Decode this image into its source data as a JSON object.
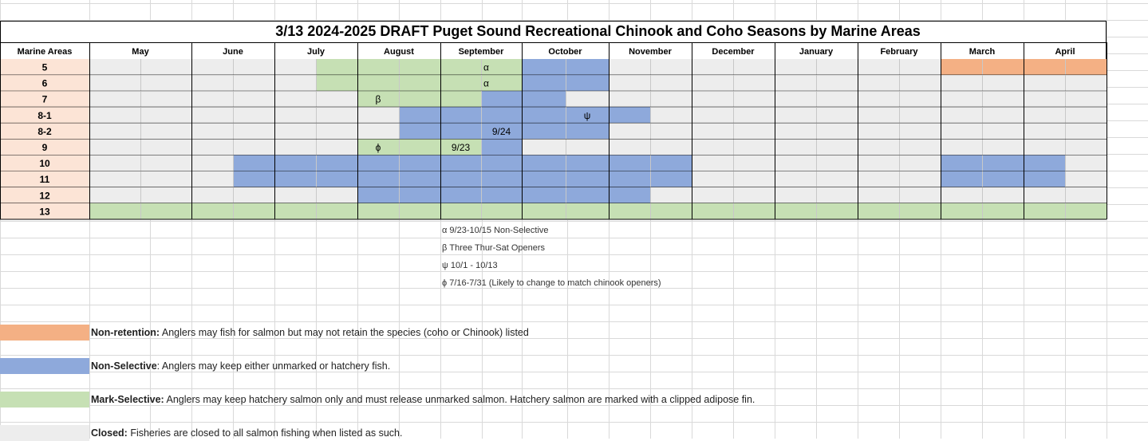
{
  "title": "3/13 2024-2025 DRAFT Puget Sound Recreational Chinook and Coho Seasons by Marine Areas",
  "header_label": "Marine Areas",
  "months": [
    "May",
    "June",
    "July",
    "August",
    "September",
    "October",
    "November",
    "December",
    "January",
    "February",
    "March",
    "April"
  ],
  "areas": [
    "5",
    "6",
    "7",
    "8-1",
    "8-2",
    "9",
    "10",
    "11",
    "12",
    "13"
  ],
  "colors": {
    "closed": "#ededed",
    "mark_selective": "#c6e0b4",
    "non_selective": "#8ea9db",
    "non_retention": "#f4b084",
    "area_label": "#fce4d6"
  },
  "schedule": [
    "CCCCCCCCCCCCCCCCCCCCCCCCCCCCCCCCCCCCCCCCCCCCCCCCCCCCCCCCCCCCCCCCCCCCCCCCCCCCRRRR",
    "",
    "",
    "",
    "",
    "",
    "",
    "",
    "",
    ""
  ],
  "rows": [
    "CCCCCMMMMMNNCCCCCCCCRRRR",
    "CCCCCMMMMMNNCCCCCCCCCCCC",
    "CCCCCCMMMNNCCCCCCCCCCCCC",
    "CCCCCCCNNNNNNCCCCCCCCCCCC",
    "CCCCCCCNNNNNCCCCCCCCCCCC",
    "CCCCCCMMMNCCCCCCCCCCCCCC",
    "CCCNNNNNNNNNNNCCCCCCNNNC",
    "CCCNNNNNNNNNNNCCCCCCNNNC",
    "CCCCCCNNNNNNNCCCCCCCCCCC",
    "MMMMMMMMMMMMMMMMMMMMMMMM"
  ],
  "cell_marks": [
    {
      "row": 0,
      "col": 9,
      "text": "α",
      "align": "left"
    },
    {
      "row": 1,
      "col": 9,
      "text": "α",
      "align": "left"
    },
    {
      "row": 2,
      "col": 6,
      "text": "β",
      "align": "center"
    },
    {
      "row": 3,
      "col": 11,
      "text": "ψ",
      "align": "center"
    },
    {
      "row": 4,
      "col": 9,
      "text": "9/24",
      "align": "center"
    },
    {
      "row": 5,
      "col": 6,
      "text": "ϕ",
      "align": "center"
    },
    {
      "row": 5,
      "col": 8,
      "text": "9/23",
      "align": "center"
    }
  ],
  "notes": [
    "α 9/23-10/15 Non-Selective",
    "β Three Thur-Sat Openers",
    "ψ 10/1 - 10/13",
    "ϕ 7/16-7/31 (Likely to change to match chinook openers)"
  ],
  "legend": [
    {
      "key": "non_retention",
      "bold": "Non-retention:",
      "text": " Anglers may fish for salmon but may not retain the species (coho or Chinook) listed"
    },
    {
      "key": "non_selective",
      "bold": "Non-Selective",
      "text": ": Anglers may keep either unmarked or hatchery fish."
    },
    {
      "key": "mark_selective",
      "bold": "Mark-Selective:",
      "text": " Anglers may keep hatchery salmon only and must release unmarked salmon. Hatchery salmon are marked with a clipped adipose fin."
    },
    {
      "key": "closed",
      "bold": "Closed:",
      "text": " Fisheries are closed to all salmon fishing when listed as such."
    }
  ]
}
